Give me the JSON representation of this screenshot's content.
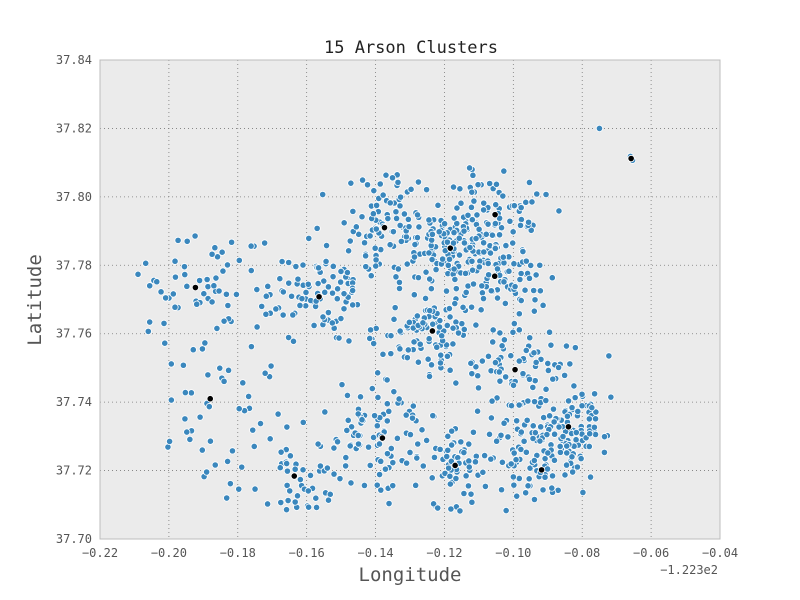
{
  "chart_data": {
    "type": "scatter",
    "title": "15 Arson Clusters",
    "xlabel": "Longitude",
    "ylabel": "Latitude",
    "x_offset_label": "−1.223e2",
    "xlim": [
      -0.22,
      -0.04
    ],
    "ylim": [
      37.7,
      37.84
    ],
    "x_ticks": [
      "−0.22",
      "−0.20",
      "−0.18",
      "−0.16",
      "−0.14",
      "−0.12",
      "−0.10",
      "−0.08",
      "−0.06",
      "−0.04"
    ],
    "y_ticks": [
      "37.70",
      "37.72",
      "37.74",
      "37.76",
      "37.78",
      "37.80",
      "37.82",
      "37.84"
    ],
    "grid": true,
    "colors": {
      "points": "#3a87bd",
      "point_edge": "#ffffff",
      "centers": "#000000",
      "plot_bg": "#ebebeb",
      "grid": "#7a7a7a"
    },
    "cluster_centers": {
      "x": [
        -0.0658,
        -0.1053,
        -0.1374,
        -0.1183,
        -0.1054,
        -0.1564,
        -0.1923,
        -0.1235,
        -0.0995,
        -0.188,
        -0.138,
        -0.1169,
        -0.084,
        -0.0918,
        -0.1636
      ],
      "y": [
        37.8112,
        37.7948,
        37.791,
        37.785,
        37.7768,
        37.7708,
        37.7735,
        37.7608,
        37.7495,
        37.741,
        37.7295,
        37.7215,
        37.7328,
        37.7202,
        37.7184
      ]
    },
    "groups": [
      {
        "cx": -0.0658,
        "cy": 37.8112,
        "n": 3,
        "sx": 0.0035,
        "sy": 0.0035
      },
      {
        "cx": -0.1053,
        "cy": 37.7948,
        "n": 90,
        "sx": 0.008,
        "sy": 0.007
      },
      {
        "cx": -0.1374,
        "cy": 37.791,
        "n": 90,
        "sx": 0.008,
        "sy": 0.008
      },
      {
        "cx": -0.1183,
        "cy": 37.785,
        "n": 110,
        "sx": 0.006,
        "sy": 0.0055
      },
      {
        "cx": -0.1054,
        "cy": 37.7768,
        "n": 80,
        "sx": 0.007,
        "sy": 0.006
      },
      {
        "cx": -0.1564,
        "cy": 37.7708,
        "n": 90,
        "sx": 0.009,
        "sy": 0.006
      },
      {
        "cx": -0.1923,
        "cy": 37.7735,
        "n": 55,
        "sx": 0.011,
        "sy": 0.008
      },
      {
        "cx": -0.1235,
        "cy": 37.7608,
        "n": 100,
        "sx": 0.007,
        "sy": 0.006
      },
      {
        "cx": -0.0995,
        "cy": 37.7495,
        "n": 80,
        "sx": 0.008,
        "sy": 0.007
      },
      {
        "cx": -0.188,
        "cy": 37.741,
        "n": 40,
        "sx": 0.01,
        "sy": 0.01
      },
      {
        "cx": -0.138,
        "cy": 37.7295,
        "n": 80,
        "sx": 0.009,
        "sy": 0.008
      },
      {
        "cx": -0.1169,
        "cy": 37.7215,
        "n": 80,
        "sx": 0.008,
        "sy": 0.006
      },
      {
        "cx": -0.084,
        "cy": 37.7328,
        "n": 110,
        "sx": 0.007,
        "sy": 0.006
      },
      {
        "cx": -0.0918,
        "cy": 37.7202,
        "n": 50,
        "sx": 0.005,
        "sy": 0.005
      },
      {
        "cx": -0.1636,
        "cy": 37.7184,
        "n": 60,
        "sx": 0.01,
        "sy": 0.006
      }
    ],
    "outliers": [
      {
        "x": -0.075,
        "y": 37.82
      }
    ]
  }
}
